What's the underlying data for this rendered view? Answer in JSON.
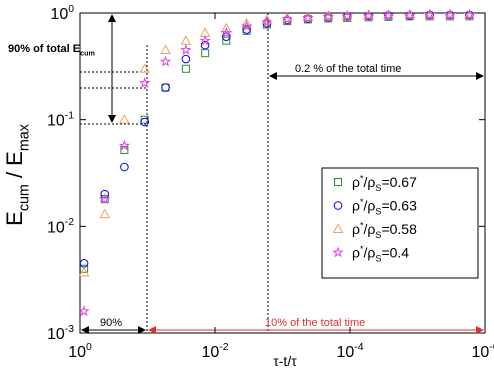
{
  "chart_data": {
    "type": "scatter",
    "xlabel": "τ-t/τ",
    "ylabel": "Ecum / Emax",
    "xlog": true,
    "ylog": true,
    "xlim": [
      1,
      1e-06
    ],
    "ylim": [
      0.001,
      1
    ],
    "xticks": [
      {
        "value": 1,
        "label": "10^0"
      },
      {
        "value": 0.01,
        "label": "10^-2"
      },
      {
        "value": 0.0001,
        "label": "10^-4"
      },
      {
        "value": 1e-06,
        "label": "10^-6"
      }
    ],
    "yticks": [
      {
        "value": 0.001,
        "label": "10^-3"
      },
      {
        "value": 0.01,
        "label": "10^-2"
      },
      {
        "value": 0.1,
        "label": "10^-1"
      },
      {
        "value": 1,
        "label": "10^0"
      }
    ],
    "x": [
      0.87,
      0.43,
      0.22,
      0.11,
      0.054,
      0.027,
      0.014,
      0.0068,
      0.0034,
      0.0017,
      0.00085,
      0.00042,
      0.00021,
      0.00011,
      5.3e-05,
      2.7e-05,
      1.3e-05,
      6.6e-06,
      3.3e-06,
      1.7e-06
    ],
    "series": [
      {
        "name": "ρ*/ρS=0.67",
        "marker": "square",
        "color": "#2e8b2e",
        "values": [
          0.004,
          0.018,
          0.052,
          0.1,
          0.2,
          0.3,
          0.42,
          0.55,
          0.68,
          0.78,
          0.84,
          0.87,
          0.89,
          0.9,
          0.91,
          0.92,
          0.93,
          0.93,
          0.93,
          0.93
        ]
      },
      {
        "name": "ρ*/ρS=0.63",
        "marker": "circle",
        "color": "#0000ff",
        "values": [
          0.0045,
          0.02,
          0.036,
          0.095,
          0.2,
          0.37,
          0.5,
          0.6,
          0.7,
          0.8,
          0.86,
          0.89,
          0.91,
          0.93,
          0.94,
          0.95,
          0.95,
          0.96,
          0.96,
          0.96
        ]
      },
      {
        "name": "ρ*/ρS=0.58",
        "marker": "triangle",
        "color": "#f0a060",
        "values": [
          0.0037,
          0.013,
          0.1,
          0.3,
          0.45,
          0.55,
          0.65,
          0.72,
          0.8,
          0.86,
          0.9,
          0.92,
          0.94,
          0.95,
          0.96,
          0.96,
          0.97,
          0.97,
          0.97,
          0.97
        ]
      },
      {
        "name": "ρ*/ρS=0.4",
        "marker": "star",
        "color": "#e040e0",
        "values": [
          0.0016,
          0.018,
          0.057,
          0.22,
          0.35,
          0.45,
          0.55,
          0.65,
          0.75,
          0.82,
          0.87,
          0.9,
          0.92,
          0.93,
          0.94,
          0.95,
          0.95,
          0.96,
          0.96,
          0.96
        ]
      }
    ],
    "annotations": [
      "90% of total Ecum",
      "0.2 % of the total time",
      "90%",
      "10% of the total time"
    ]
  }
}
